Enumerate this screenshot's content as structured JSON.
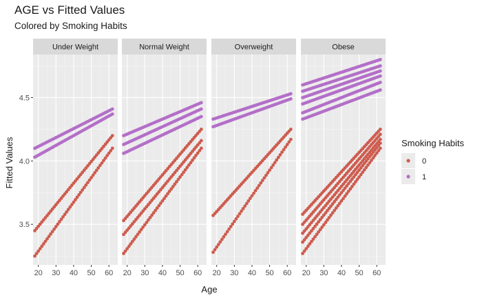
{
  "chart_data": {
    "type": "scatter",
    "title": "AGE vs Fitted Values",
    "subtitle": "Colored by Smoking Habits",
    "xlabel": "Age",
    "ylabel": "Fitted Values",
    "xlim": [
      17,
      65
    ],
    "ylim": [
      3.18,
      4.84
    ],
    "x_ticks": [
      20,
      30,
      40,
      50,
      60
    ],
    "y_ticks": [
      3.5,
      4.0,
      4.5
    ],
    "y_tick_labels": [
      "3.5",
      "4.0",
      "4.5"
    ],
    "grid": true,
    "legend": {
      "title": "Smoking Habits",
      "placement": "right"
    },
    "facet_by": "BMI category",
    "panels": [
      {
        "label": "Under Weight",
        "series": [
          {
            "name": "0",
            "color": "#cd5c4f",
            "lines": [
              {
                "start": [
                  18,
                  3.45
                ],
                "end": [
                  62,
                  4.2
                ]
              },
              {
                "start": [
                  18,
                  3.25
                ],
                "end": [
                  62,
                  4.1
                ]
              }
            ]
          },
          {
            "name": "1",
            "color": "#b36fc8",
            "lines": [
              {
                "start": [
                  18,
                  4.1
                ],
                "end": [
                  62,
                  4.41
                ]
              },
              {
                "start": [
                  18,
                  4.03
                ],
                "end": [
                  62,
                  4.37
                ]
              }
            ]
          }
        ]
      },
      {
        "label": "Normal Weight",
        "series": [
          {
            "name": "0",
            "color": "#cd5c4f",
            "lines": [
              {
                "start": [
                  18,
                  3.53
                ],
                "end": [
                  62,
                  4.25
                ]
              },
              {
                "start": [
                  18,
                  3.42
                ],
                "end": [
                  62,
                  4.16
                ]
              },
              {
                "start": [
                  18,
                  3.27
                ],
                "end": [
                  62,
                  4.1
                ]
              }
            ]
          },
          {
            "name": "1",
            "color": "#b36fc8",
            "lines": [
              {
                "start": [
                  18,
                  4.2
                ],
                "end": [
                  62,
                  4.46
                ]
              },
              {
                "start": [
                  18,
                  4.13
                ],
                "end": [
                  62,
                  4.41
                ]
              },
              {
                "start": [
                  18,
                  4.06
                ],
                "end": [
                  62,
                  4.35
                ]
              }
            ]
          }
        ]
      },
      {
        "label": "Overweight",
        "series": [
          {
            "name": "0",
            "color": "#cd5c4f",
            "lines": [
              {
                "start": [
                  18,
                  3.57
                ],
                "end": [
                  62,
                  4.25
                ]
              },
              {
                "start": [
                  18,
                  3.28
                ],
                "end": [
                  62,
                  4.17
                ]
              }
            ]
          },
          {
            "name": "1",
            "color": "#b36fc8",
            "lines": [
              {
                "start": [
                  18,
                  4.33
                ],
                "end": [
                  62,
                  4.53
                ]
              },
              {
                "start": [
                  18,
                  4.27
                ],
                "end": [
                  62,
                  4.49
                ]
              }
            ]
          }
        ]
      },
      {
        "label": "Obese",
        "series": [
          {
            "name": "0",
            "color": "#cd5c4f",
            "lines": [
              {
                "start": [
                  18,
                  3.58
                ],
                "end": [
                  62,
                  4.25
                ]
              },
              {
                "start": [
                  18,
                  3.5
                ],
                "end": [
                  62,
                  4.21
                ]
              },
              {
                "start": [
                  18,
                  3.43
                ],
                "end": [
                  62,
                  4.17
                ]
              },
              {
                "start": [
                  18,
                  3.36
                ],
                "end": [
                  62,
                  4.14
                ]
              },
              {
                "start": [
                  18,
                  3.27
                ],
                "end": [
                  62,
                  4.1
                ]
              }
            ]
          },
          {
            "name": "1",
            "color": "#b36fc8",
            "lines": [
              {
                "start": [
                  18,
                  4.6
                ],
                "end": [
                  62,
                  4.8
                ]
              },
              {
                "start": [
                  18,
                  4.55
                ],
                "end": [
                  62,
                  4.75
                ]
              },
              {
                "start": [
                  18,
                  4.5
                ],
                "end": [
                  62,
                  4.71
                ]
              },
              {
                "start": [
                  18,
                  4.45
                ],
                "end": [
                  62,
                  4.67
                ]
              },
              {
                "start": [
                  18,
                  4.38
                ],
                "end": [
                  62,
                  4.62
                ]
              },
              {
                "start": [
                  18,
                  4.33
                ],
                "end": [
                  62,
                  4.56
                ]
              }
            ]
          }
        ]
      }
    ]
  }
}
